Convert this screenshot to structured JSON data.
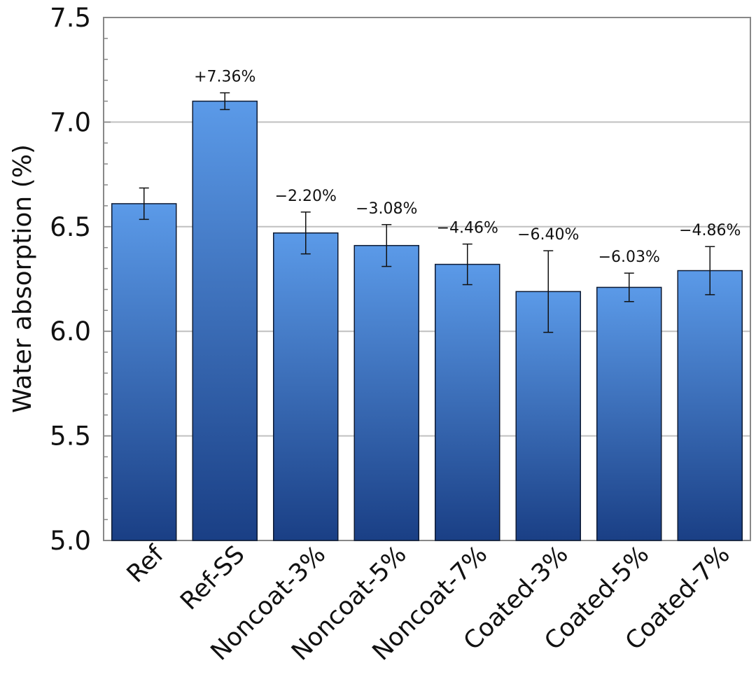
{
  "chart_data": {
    "type": "bar",
    "title": "",
    "xlabel": "",
    "ylabel": "Water absorption (%)",
    "ylim": [
      5.0,
      7.5
    ],
    "yticks": [
      "5.0",
      "5.5",
      "6.0",
      "6.5",
      "7.0",
      "7.5"
    ],
    "grid": true,
    "categories": [
      "Ref",
      "Ref-SS",
      "Noncoat-3%",
      "Noncoat-5%",
      "Noncoat-7%",
      "Coated-3%",
      "Coated-5%",
      "Coated-7%"
    ],
    "values": [
      6.61,
      7.1,
      6.47,
      6.41,
      6.32,
      6.19,
      6.21,
      6.29
    ],
    "errors": [
      0.075,
      0.04,
      0.1,
      0.1,
      0.097,
      0.195,
      0.068,
      0.115
    ],
    "annotations": [
      "",
      "+7.36%",
      "−2.20%",
      "−3.08%",
      "−4.46%",
      "−6.40%",
      "−6.03%",
      "−4.86%"
    ],
    "colors": {
      "bar_top": "#5b9ae8",
      "bar_bottom": "#1a3f85",
      "bar_stroke": "#0d1a33",
      "grid": "#c0c0c0",
      "axis": "#888888"
    }
  }
}
